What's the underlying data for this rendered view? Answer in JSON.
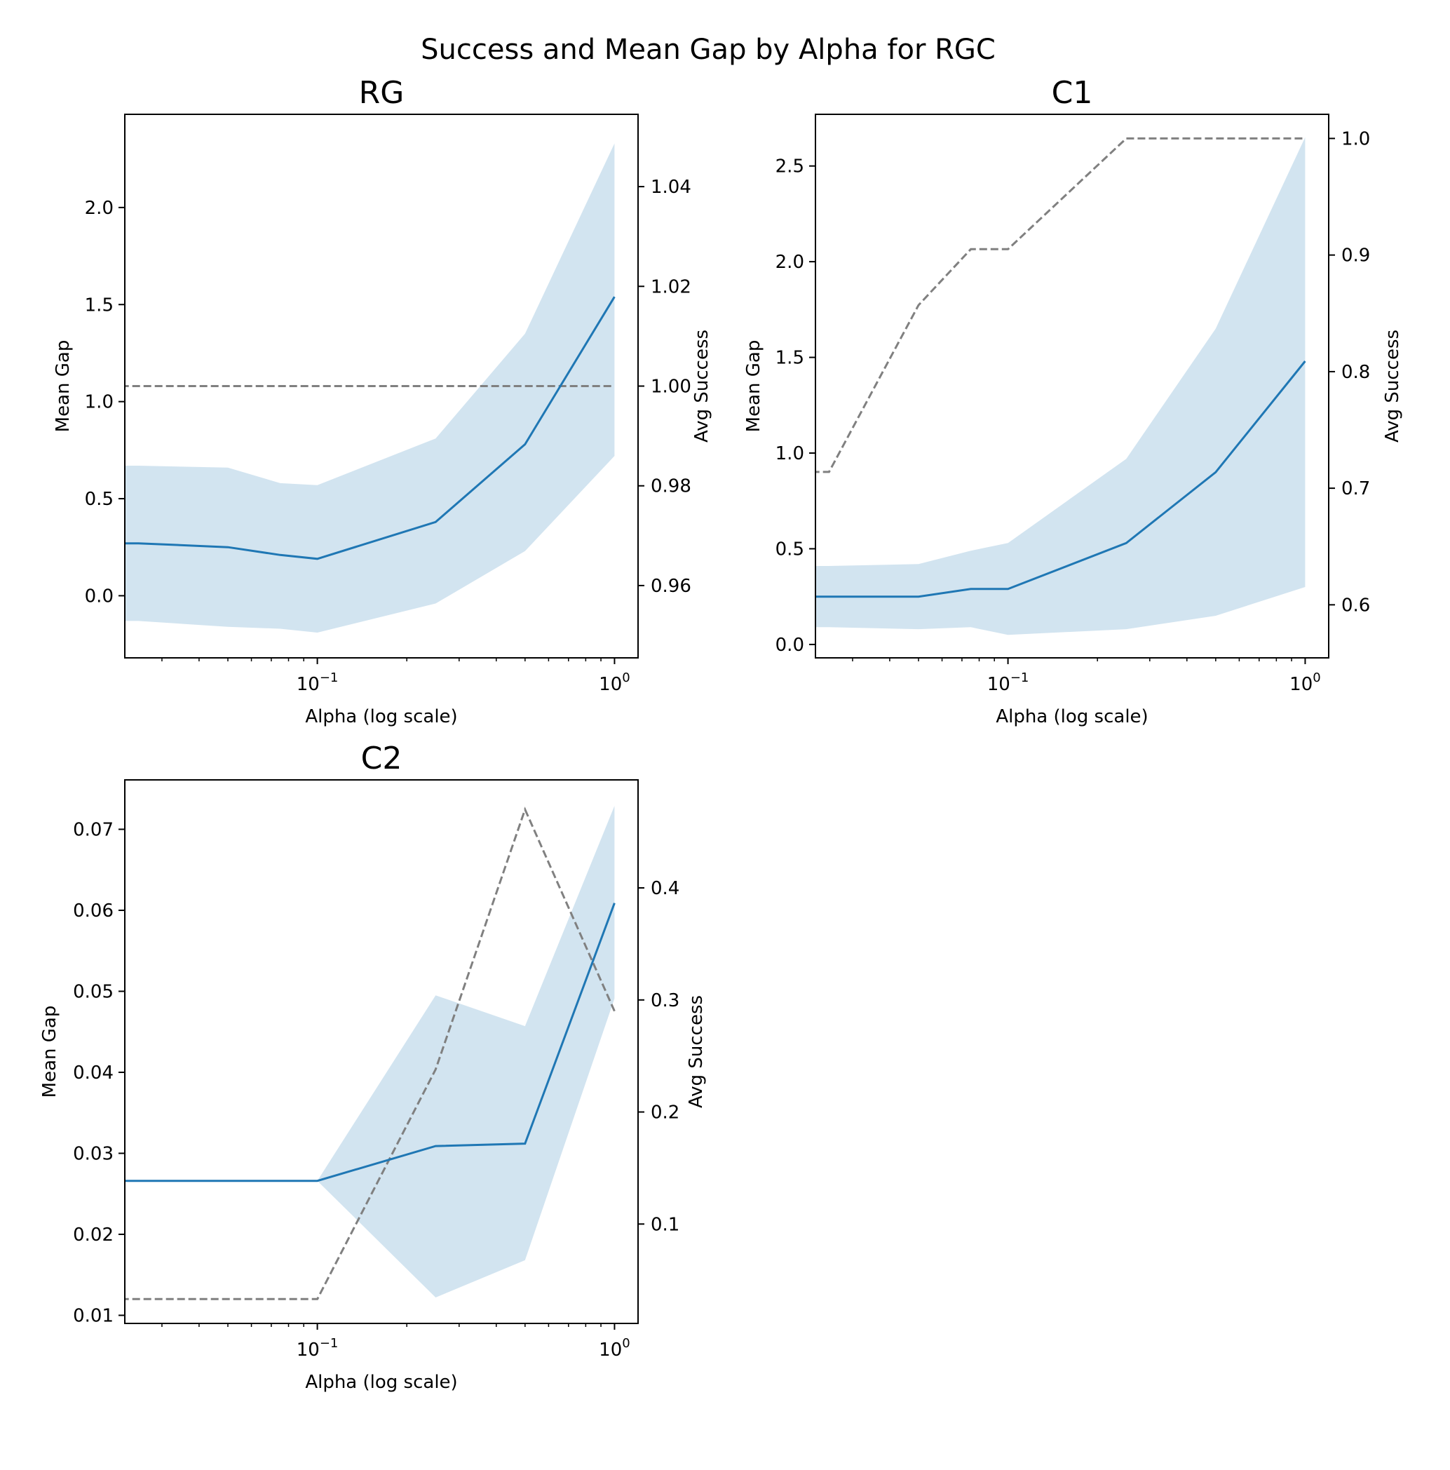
{
  "suptitle": "Success and Mean Gap by Alpha for RGC",
  "colors": {
    "mean_line": "#1f77b4",
    "band_fill": "#1f77b4",
    "success_line": "#808080",
    "axes": "#000000",
    "background": "#ffffff"
  },
  "chart_data": [
    {
      "type": "line",
      "title": "RG",
      "xlabel": "Alpha (log scale)",
      "ylabel": "Mean Gap",
      "ylabel_right": "Avg Success",
      "xscale": "log",
      "xlim": [
        0.0225,
        1.2
      ],
      "ylim": [
        -0.32,
        2.48
      ],
      "ylim_right": [
        0.9455,
        1.0545
      ],
      "x_ticks": [
        {
          "base": "10",
          "exp": "−1",
          "value": 0.1
        },
        {
          "base": "10",
          "exp": "0",
          "value": 1
        }
      ],
      "y_ticks": [
        "0.0",
        "0.5",
        "1.0",
        "1.5",
        "2.0"
      ],
      "y_ticks_right": [
        "0.96",
        "0.98",
        "1.00",
        "1.02",
        "1.04"
      ],
      "grid": false,
      "x": [
        0.01,
        0.025,
        0.05,
        0.075,
        0.1,
        0.25,
        0.5,
        1.0
      ],
      "series": [
        {
          "values": [
            0.27,
            0.27,
            0.25,
            0.21,
            0.19,
            0.38,
            0.78,
            1.54
          ],
          "lower": [
            -0.13,
            -0.13,
            -0.16,
            -0.17,
            -0.19,
            -0.04,
            0.23,
            0.72
          ],
          "upper": [
            0.67,
            0.67,
            0.66,
            0.58,
            0.57,
            0.81,
            1.35,
            2.33
          ],
          "axis": "left",
          "style": "solid"
        },
        {
          "values": [
            1.0,
            1.0,
            1.0,
            1.0,
            1.0,
            1.0,
            1.0,
            1.0
          ],
          "axis": "right",
          "style": "dashed"
        }
      ]
    },
    {
      "type": "line",
      "title": "C1",
      "xlabel": "Alpha (log scale)",
      "ylabel": "Mean Gap",
      "ylabel_right": "Avg Success",
      "xscale": "log",
      "xlim": [
        0.0225,
        1.2
      ],
      "ylim": [
        -0.07,
        2.77
      ],
      "ylim_right": [
        0.5545,
        1.0207
      ],
      "x_ticks": [
        {
          "base": "10",
          "exp": "−1",
          "value": 0.1
        },
        {
          "base": "10",
          "exp": "0",
          "value": 1
        }
      ],
      "y_ticks": [
        "0.0",
        "0.5",
        "1.0",
        "1.5",
        "2.0",
        "2.5"
      ],
      "y_ticks_right": [
        "0.6",
        "0.7",
        "0.8",
        "0.9",
        "1.0"
      ],
      "grid": false,
      "x": [
        0.01,
        0.025,
        0.05,
        0.075,
        0.1,
        0.25,
        0.5,
        1.0
      ],
      "series": [
        {
          "values": [
            0.25,
            0.25,
            0.25,
            0.29,
            0.29,
            0.53,
            0.9,
            1.48
          ],
          "lower": [
            0.09,
            0.09,
            0.08,
            0.09,
            0.05,
            0.08,
            0.15,
            0.3
          ],
          "upper": [
            0.41,
            0.41,
            0.42,
            0.49,
            0.53,
            0.97,
            1.65,
            2.65
          ],
          "axis": "left",
          "style": "solid"
        },
        {
          "values": [
            0.714,
            0.714,
            0.857,
            0.905,
            0.905,
            1.0,
            1.0,
            1.0
          ],
          "axis": "right",
          "style": "dashed"
        }
      ]
    },
    {
      "type": "line",
      "title": "C2",
      "xlabel": "Alpha (log scale)",
      "ylabel": "Mean Gap",
      "ylabel_right": "Avg Success",
      "xscale": "log",
      "xlim": [
        0.0225,
        1.2
      ],
      "ylim": [
        0.009,
        0.0761
      ],
      "ylim_right": [
        0.0113,
        0.4964
      ],
      "x_ticks": [
        {
          "base": "10",
          "exp": "−1",
          "value": 0.1
        },
        {
          "base": "10",
          "exp": "0",
          "value": 1
        }
      ],
      "y_ticks": [
        "0.01",
        "0.02",
        "0.03",
        "0.04",
        "0.05",
        "0.06",
        "0.07"
      ],
      "y_ticks_right": [
        "0.1",
        "0.2",
        "0.3",
        "0.4"
      ],
      "grid": false,
      "x": [
        0.01,
        0.025,
        0.05,
        0.075,
        0.1,
        0.25,
        0.5,
        1.0
      ],
      "series": [
        {
          "values": [
            0.0266,
            0.0266,
            0.0266,
            0.0266,
            0.0266,
            0.0309,
            0.0312,
            0.0609
          ],
          "lower": [
            0.0266,
            0.0266,
            0.0266,
            0.0266,
            0.0266,
            0.0122,
            0.0168,
            0.0491
          ],
          "upper": [
            0.0266,
            0.0266,
            0.0266,
            0.0266,
            0.0266,
            0.0495,
            0.0457,
            0.0729
          ],
          "axis": "left",
          "style": "solid"
        },
        {
          "values": [
            0.033,
            0.033,
            0.033,
            0.033,
            0.033,
            0.238,
            0.47,
            0.29
          ],
          "axis": "right",
          "style": "dashed"
        }
      ]
    }
  ]
}
